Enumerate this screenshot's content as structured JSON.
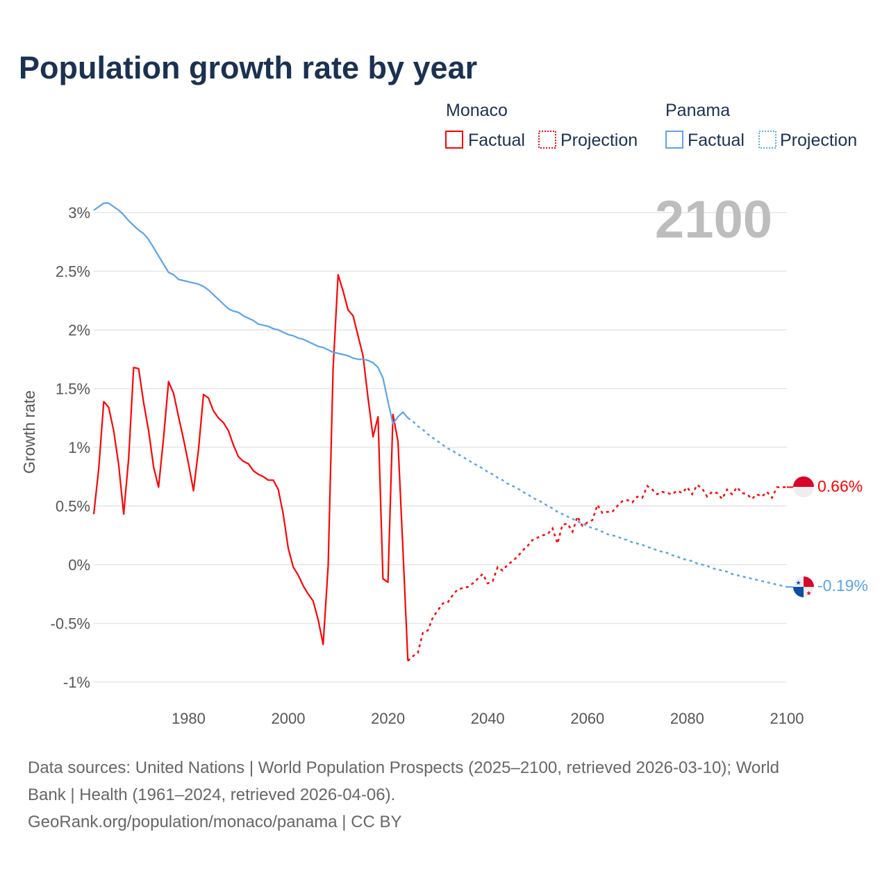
{
  "chart_data": {
    "type": "line",
    "title": "Population growth rate by year",
    "ylabel": "Growth rate",
    "xlabel": "",
    "xlim": [
      1961,
      2100
    ],
    "ylim": [
      -1,
      3
    ],
    "grid": true,
    "current_year": "2100",
    "x_ticks": [
      "1980",
      "2000",
      "2020",
      "2040",
      "2060",
      "2080",
      "2100"
    ],
    "y_ticks": [
      {
        "v": 3,
        "label": "3%"
      },
      {
        "v": 2.5,
        "label": "2.5%"
      },
      {
        "v": 2,
        "label": "2%"
      },
      {
        "v": 1.5,
        "label": "1.5%"
      },
      {
        "v": 1,
        "label": "1%"
      },
      {
        "v": 0.5,
        "label": "0.5%"
      },
      {
        "v": 0,
        "label": "0%"
      },
      {
        "v": -0.5,
        "label": "-0.5%"
      },
      {
        "v": -1,
        "label": "-1%"
      }
    ],
    "legend": {
      "placement": "top-right",
      "groups": [
        {
          "name": "Monaco",
          "factual": "Factual",
          "projection": "Projection"
        },
        {
          "name": "Panama",
          "factual": "Factual",
          "projection": "Projection"
        }
      ]
    },
    "series": [
      {
        "name": "Monaco",
        "color": "#ff0000",
        "end_label": "0.66%",
        "factual_start": 1961,
        "factual": [
          0.43,
          0.82,
          1.39,
          1.34,
          1.14,
          0.85,
          0.43,
          0.91,
          1.68,
          1.67,
          1.38,
          1.14,
          0.83,
          0.66,
          1.08,
          1.56,
          1.46,
          1.26,
          1.07,
          0.86,
          0.63,
          0.98,
          1.45,
          1.42,
          1.31,
          1.25,
          1.21,
          1.14,
          1.02,
          0.92,
          0.88,
          0.86,
          0.8,
          0.77,
          0.75,
          0.72,
          0.72,
          0.64,
          0.43,
          0.14,
          -0.02,
          -0.09,
          -0.18,
          -0.25,
          -0.31,
          -0.47,
          -0.68,
          -0.01,
          1.67,
          2.47,
          2.33,
          2.17,
          2.12,
          1.95,
          1.78,
          1.42,
          1.09,
          1.26,
          -0.12,
          -0.15,
          1.28,
          1.05,
          0.12,
          -0.82
        ],
        "projection_start": 2024,
        "projection": [
          -0.82,
          -0.78,
          -0.75,
          -0.58,
          -0.56,
          -0.45,
          -0.39,
          -0.33,
          -0.32,
          -0.26,
          -0.21,
          -0.2,
          -0.19,
          -0.16,
          -0.12,
          -0.08,
          -0.16,
          -0.14,
          -0.02,
          -0.05,
          0.0,
          0.03,
          0.07,
          0.12,
          0.16,
          0.21,
          0.23,
          0.25,
          0.26,
          0.31,
          0.18,
          0.34,
          0.35,
          0.28,
          0.41,
          0.33,
          0.36,
          0.38,
          0.51,
          0.44,
          0.45,
          0.45,
          0.5,
          0.54,
          0.55,
          0.53,
          0.58,
          0.57,
          0.67,
          0.64,
          0.6,
          0.62,
          0.61,
          0.6,
          0.63,
          0.61,
          0.66,
          0.6,
          0.68,
          0.65,
          0.58,
          0.62,
          0.61,
          0.56,
          0.64,
          0.6,
          0.66,
          0.61,
          0.6,
          0.56,
          0.6,
          0.58,
          0.62,
          0.57,
          0.66,
          0.66,
          0.66
        ]
      },
      {
        "name": "Panama",
        "color": "#5ba3ec",
        "end_label": "-0.19%",
        "factual_start": 1961,
        "factual": [
          3.02,
          3.05,
          3.08,
          3.08,
          3.05,
          3.02,
          2.98,
          2.93,
          2.89,
          2.85,
          2.82,
          2.77,
          2.7,
          2.63,
          2.56,
          2.49,
          2.47,
          2.43,
          2.42,
          2.41,
          2.4,
          2.39,
          2.37,
          2.34,
          2.3,
          2.26,
          2.22,
          2.18,
          2.16,
          2.15,
          2.12,
          2.1,
          2.08,
          2.05,
          2.04,
          2.03,
          2.01,
          2.0,
          1.98,
          1.96,
          1.95,
          1.93,
          1.92,
          1.9,
          1.88,
          1.86,
          1.85,
          1.83,
          1.81,
          1.8,
          1.79,
          1.78,
          1.76,
          1.75,
          1.75,
          1.74,
          1.72,
          1.68,
          1.59,
          1.39,
          1.2,
          1.26,
          1.3,
          1.25
        ],
        "projection_start": 2024,
        "projection": [
          1.25,
          1.22,
          1.18,
          1.15,
          1.11,
          1.08,
          1.05,
          1.02,
          0.99,
          0.97,
          0.94,
          0.92,
          0.89,
          0.87,
          0.84,
          0.82,
          0.79,
          0.77,
          0.74,
          0.72,
          0.69,
          0.67,
          0.65,
          0.62,
          0.6,
          0.57,
          0.55,
          0.53,
          0.5,
          0.48,
          0.45,
          0.43,
          0.41,
          0.39,
          0.37,
          0.35,
          0.33,
          0.31,
          0.3,
          0.28,
          0.26,
          0.25,
          0.24,
          0.22,
          0.21,
          0.19,
          0.18,
          0.17,
          0.15,
          0.14,
          0.12,
          0.11,
          0.1,
          0.08,
          0.07,
          0.05,
          0.04,
          0.03,
          0.01,
          0.0,
          -0.01,
          -0.03,
          -0.04,
          -0.05,
          -0.06,
          -0.08,
          -0.09,
          -0.1,
          -0.11,
          -0.12,
          -0.13,
          -0.14,
          -0.15,
          -0.16,
          -0.17,
          -0.18,
          -0.19
        ]
      }
    ]
  },
  "footer": {
    "line1": "Data sources: United Nations | World Population Prospects (2025–2100, retrieved 2026-03-10); World",
    "line2": "Bank | Health (1961–2024, retrieved 2026-04-06).",
    "line3": "GeoRank.org/population/monaco/panama | CC BY"
  }
}
